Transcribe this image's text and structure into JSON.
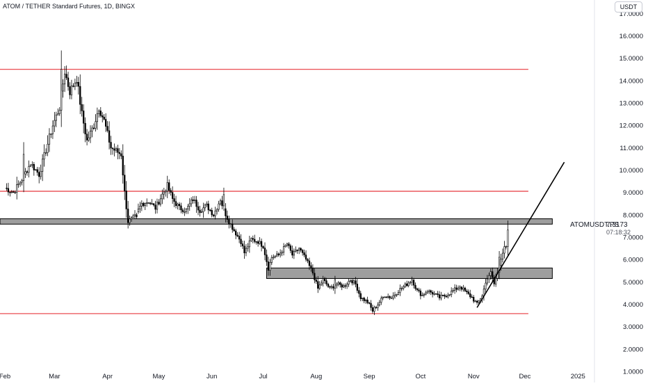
{
  "header": {
    "title": "ATOM / TETHER Standard Futures, 1D, BINGX",
    "currency": "USDT"
  },
  "price_label": {
    "symbol": "ATOMUSDT.PS",
    "price": "7.3173",
    "countdown": "07:18:32"
  },
  "colors": {
    "up_candle": "#ffffff",
    "down_candle": "#000000",
    "level_line": "#e8383d",
    "zone_fill": "#9e9e9e",
    "trendline": "#000000"
  },
  "chart_data": {
    "type": "candlestick",
    "title": "ATOM / TETHER Standard Futures, 1D, BINGX",
    "y_tick_labels": [
      "1.0000",
      "2.0000",
      "3.0000",
      "4.0000",
      "5.0000",
      "6.0000",
      "7.0000",
      "8.0000",
      "9.0000",
      "10.0000",
      "11.0000",
      "12.0000",
      "13.0000",
      "14.0000",
      "15.0000",
      "16.0000",
      "17.0000"
    ],
    "y_ticks": [
      1,
      2,
      3,
      4,
      5,
      6,
      7,
      8,
      9,
      10,
      11,
      12,
      13,
      14,
      15,
      16,
      17
    ],
    "ylim": [
      0.5,
      17.6
    ],
    "x_ticks": [
      {
        "label": "Feb",
        "day": 0
      },
      {
        "label": "Mar",
        "day": 29
      },
      {
        "label": "Apr",
        "day": 60
      },
      {
        "label": "May",
        "day": 90
      },
      {
        "label": "Jun",
        "day": 121
      },
      {
        "label": "Jul",
        "day": 151
      },
      {
        "label": "Aug",
        "day": 182
      },
      {
        "label": "Sep",
        "day": 213
      },
      {
        "label": "Oct",
        "day": 243
      },
      {
        "label": "Nov",
        "day": 274
      },
      {
        "label": "Dec",
        "day": 304
      },
      {
        "label": "2025",
        "day": 335
      }
    ],
    "waypoints": [
      [
        0,
        9.2
      ],
      [
        5,
        9.0
      ],
      [
        10,
        9.6
      ],
      [
        15,
        10.3
      ],
      [
        20,
        9.8
      ],
      [
        24,
        10.9
      ],
      [
        28,
        12.0
      ],
      [
        32,
        12.8
      ],
      [
        35,
        14.4
      ],
      [
        38,
        13.5
      ],
      [
        42,
        14.1
      ],
      [
        45,
        12.5
      ],
      [
        48,
        11.3
      ],
      [
        52,
        12.0
      ],
      [
        55,
        12.8
      ],
      [
        58,
        12.2
      ],
      [
        62,
        11.0
      ],
      [
        66,
        10.8
      ],
      [
        68,
        10.7
      ],
      [
        70,
        9.0
      ],
      [
        72,
        7.7
      ],
      [
        76,
        7.9
      ],
      [
        80,
        8.5
      ],
      [
        84,
        8.6
      ],
      [
        88,
        8.3
      ],
      [
        92,
        8.9
      ],
      [
        95,
        9.3
      ],
      [
        98,
        8.7
      ],
      [
        102,
        8.3
      ],
      [
        106,
        8.2
      ],
      [
        110,
        8.7
      ],
      [
        114,
        8.2
      ],
      [
        118,
        8.4
      ],
      [
        122,
        8.0
      ],
      [
        126,
        8.7
      ],
      [
        128,
        8.2
      ],
      [
        131,
        7.7
      ],
      [
        134,
        7.3
      ],
      [
        138,
        6.8
      ],
      [
        140,
        6.3
      ],
      [
        144,
        6.9
      ],
      [
        148,
        6.8
      ],
      [
        151,
        6.6
      ],
      [
        154,
        5.6
      ],
      [
        156,
        6.1
      ],
      [
        160,
        6.2
      ],
      [
        165,
        6.7
      ],
      [
        168,
        6.2
      ],
      [
        172,
        6.5
      ],
      [
        176,
        6.0
      ],
      [
        180,
        5.4
      ],
      [
        183,
        4.7
      ],
      [
        186,
        5.1
      ],
      [
        190,
        4.7
      ],
      [
        194,
        4.9
      ],
      [
        198,
        4.8
      ],
      [
        202,
        5.1
      ],
      [
        205,
        4.9
      ],
      [
        208,
        4.3
      ],
      [
        212,
        4.1
      ],
      [
        215,
        3.7
      ],
      [
        218,
        4.0
      ],
      [
        222,
        4.4
      ],
      [
        226,
        4.3
      ],
      [
        230,
        4.6
      ],
      [
        235,
        4.9
      ],
      [
        238,
        5.1
      ],
      [
        241,
        4.6
      ],
      [
        244,
        4.4
      ],
      [
        247,
        4.6
      ],
      [
        250,
        4.5
      ],
      [
        254,
        4.3
      ],
      [
        258,
        4.4
      ],
      [
        262,
        4.6
      ],
      [
        266,
        4.8
      ],
      [
        270,
        4.5
      ],
      [
        273,
        4.3
      ],
      [
        276,
        4.0
      ],
      [
        279,
        4.4
      ],
      [
        282,
        5.2
      ],
      [
        284,
        5.4
      ],
      [
        286,
        4.9
      ],
      [
        288,
        5.4
      ],
      [
        290,
        6.1
      ],
      [
        292,
        6.6
      ],
      [
        293,
        6.5
      ],
      [
        294,
        7.3
      ]
    ],
    "highlighted_days": [
      {
        "day": 11,
        "value": 10.7
      },
      {
        "day": 33,
        "value": 14.5
      },
      {
        "day": 77,
        "value": 7.9
      },
      {
        "day": 128,
        "value": 8.9
      },
      {
        "day": 193,
        "value": 5.1
      },
      {
        "day": 289,
        "value": 6.1
      },
      {
        "day": 294,
        "value": 7.3173
      }
    ],
    "horizontal_levels": [
      14.5,
      9.05,
      3.58
    ],
    "level_x_range": [
      -14,
      306
    ],
    "zones": [
      {
        "low": 7.58,
        "high": 7.82,
        "day_start": -14,
        "day_end": 320
      },
      {
        "low": 5.15,
        "high": 5.62,
        "day_start": 153,
        "day_end": 320
      }
    ],
    "trendline": {
      "start": [
        276,
        3.85
      ],
      "end": [
        327,
        10.35
      ]
    },
    "last_price": 7.3173
  }
}
